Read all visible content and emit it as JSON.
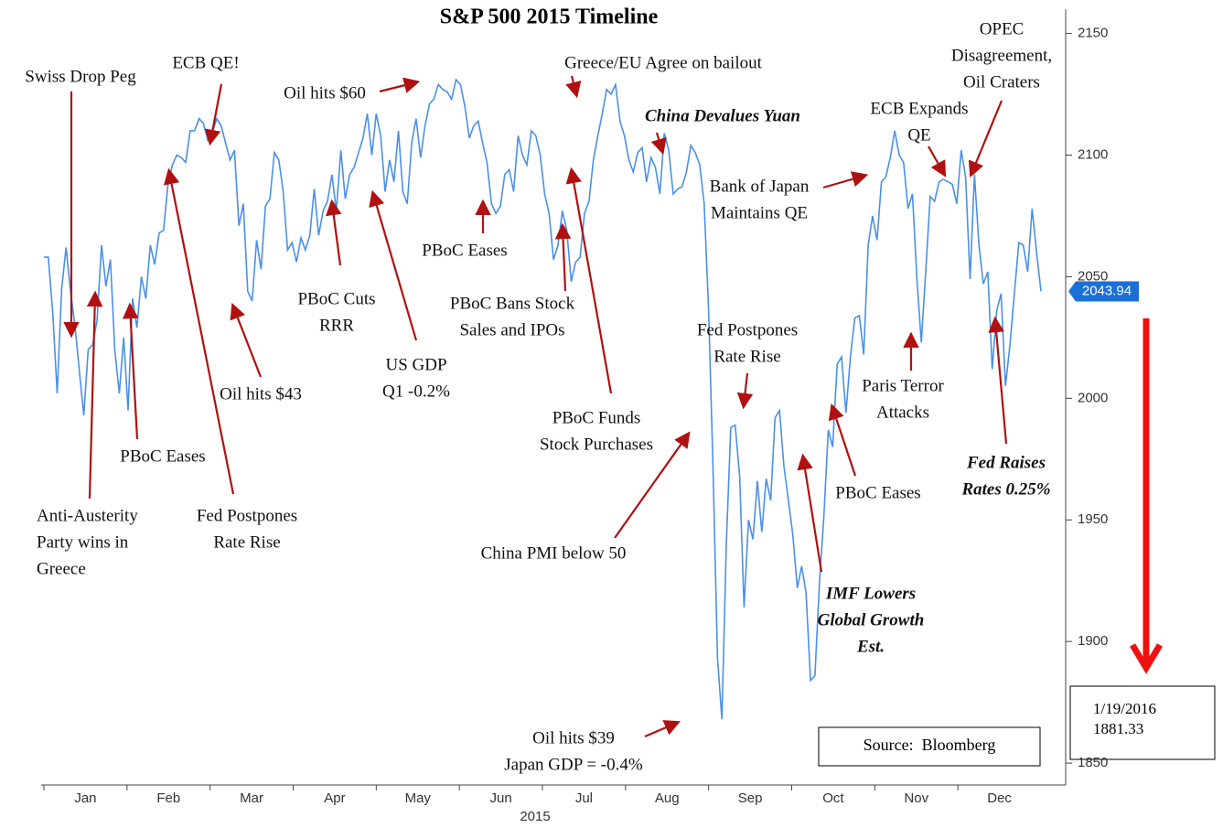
{
  "chart_data": {
    "type": "line",
    "title": "S&P 500 2015 Timeline",
    "x_label": "2015",
    "months": [
      "Jan",
      "Feb",
      "Mar",
      "Apr",
      "May",
      "Jun",
      "Jul",
      "Aug",
      "Sep",
      "Oct",
      "Nov",
      "Dec"
    ],
    "series": [
      {
        "name": "S&P 500",
        "color": "#4a90e8",
        "values": [
          2058,
          2058,
          2035,
          2002,
          2045,
          2062,
          2044,
          2030,
          2011,
          1993,
          2020,
          2022,
          2032,
          2063,
          2046,
          2057,
          2020,
          2002,
          2025,
          1995,
          2041,
          2029,
          2050,
          2041,
          2063,
          2055,
          2068,
          2069,
          2088,
          2096,
          2100,
          2099,
          2097,
          2110,
          2110,
          2115,
          2113,
          2106,
          2109,
          2115,
          2112,
          2105,
          2098,
          2102,
          2071,
          2080,
          2044,
          2040,
          2065,
          2053,
          2079,
          2082,
          2101,
          2098,
          2085,
          2061,
          2064,
          2056,
          2066,
          2061,
          2067,
          2086,
          2067,
          2077,
          2081,
          2092,
          2077,
          2102,
          2082,
          2092,
          2095,
          2101,
          2107,
          2117,
          2100,
          2117,
          2108,
          2085,
          2098,
          2089,
          2110,
          2085,
          2080,
          2105,
          2115,
          2099,
          2112,
          2121,
          2123,
          2129,
          2127,
          2126,
          2123,
          2131,
          2129,
          2120,
          2107,
          2112,
          2114,
          2105,
          2097,
          2080,
          2076,
          2079,
          2092,
          2094,
          2085,
          2108,
          2100,
          2096,
          2110,
          2108,
          2100,
          2084,
          2076,
          2057,
          2063,
          2077,
          2069,
          2048,
          2056,
          2058,
          2076,
          2081,
          2098,
          2108,
          2117,
          2127,
          2125,
          2129,
          2114,
          2108,
          2098,
          2093,
          2101,
          2103,
          2089,
          2099,
          2095,
          2084,
          2109,
          2102,
          2084,
          2086,
          2087,
          2093,
          2104,
          2101,
          2096,
          2080,
          2036,
          1971,
          1893,
          1868,
          1940,
          1988,
          1989,
          1968,
          1914,
          1950,
          1942,
          1966,
          1945,
          1967,
          1958,
          1992,
          1995,
          1972,
          1958,
          1944,
          1922,
          1931,
          1920,
          1884,
          1886,
          1924,
          1951,
          1987,
          1980,
          2014,
          2017,
          1994,
          2017,
          2033,
          2034,
          2018,
          2063,
          2075,
          2065,
          2089,
          2091,
          2099,
          2110,
          2100,
          2097,
          2078,
          2084,
          2049,
          2023,
          2052,
          2083,
          2081,
          2089,
          2090,
          2089,
          2088,
          2080,
          2102,
          2091,
          2049,
          2092,
          2063,
          2047,
          2052,
          2012,
          2036,
          2043,
          2005,
          2022,
          2043,
          2064,
          2063,
          2052,
          2078,
          2060,
          2044
        ]
      }
    ],
    "ylim": [
      1841,
      2160
    ],
    "yticks": [
      1850,
      1900,
      1950,
      2000,
      2050,
      2100,
      2150
    ],
    "last_value": 2043.94,
    "annotations": [
      [
        "Swiss Drop Peg"
      ],
      [
        "ECB QE!"
      ],
      [
        "Oil hits $60"
      ],
      [
        "Greece/EU Agree on bailout"
      ],
      [
        "China Devalues Yuan"
      ],
      [
        "OPEC",
        "Disagreement,",
        "Oil Craters"
      ],
      [
        "ECB Expands",
        "QE"
      ],
      [
        "Bank of Japan",
        "Maintains QE"
      ],
      [
        "PBoC Eases"
      ],
      [
        "PBoC Cuts",
        "RRR"
      ],
      [
        "PBoC Bans Stock",
        "Sales and IPOs"
      ],
      [
        "Oil hits $43"
      ],
      [
        "US GDP",
        "Q1 -0.2%"
      ],
      [
        "PBoC Eases"
      ],
      [
        "Anti-Austerity",
        "Party wins in",
        "Greece"
      ],
      [
        "Fed Postpones",
        "Rate Rise"
      ],
      [
        "PBoC Funds",
        "Stock Purchases"
      ],
      [
        "Fed Postpones",
        "Rate Rise"
      ],
      [
        "Paris Terror",
        "Attacks"
      ],
      [
        "China PMI below 50"
      ],
      [
        "PBoC Eases"
      ],
      [
        "IMF Lowers",
        "Global Growth",
        "Est."
      ],
      [
        "Fed Raises",
        "Rates 0.25%"
      ],
      [
        "Oil hits $39",
        "Japan GDP = -0.4%"
      ]
    ],
    "source": "Source:  Bloomberg",
    "note": [
      "1/19/2016",
      "1881.33"
    ]
  }
}
